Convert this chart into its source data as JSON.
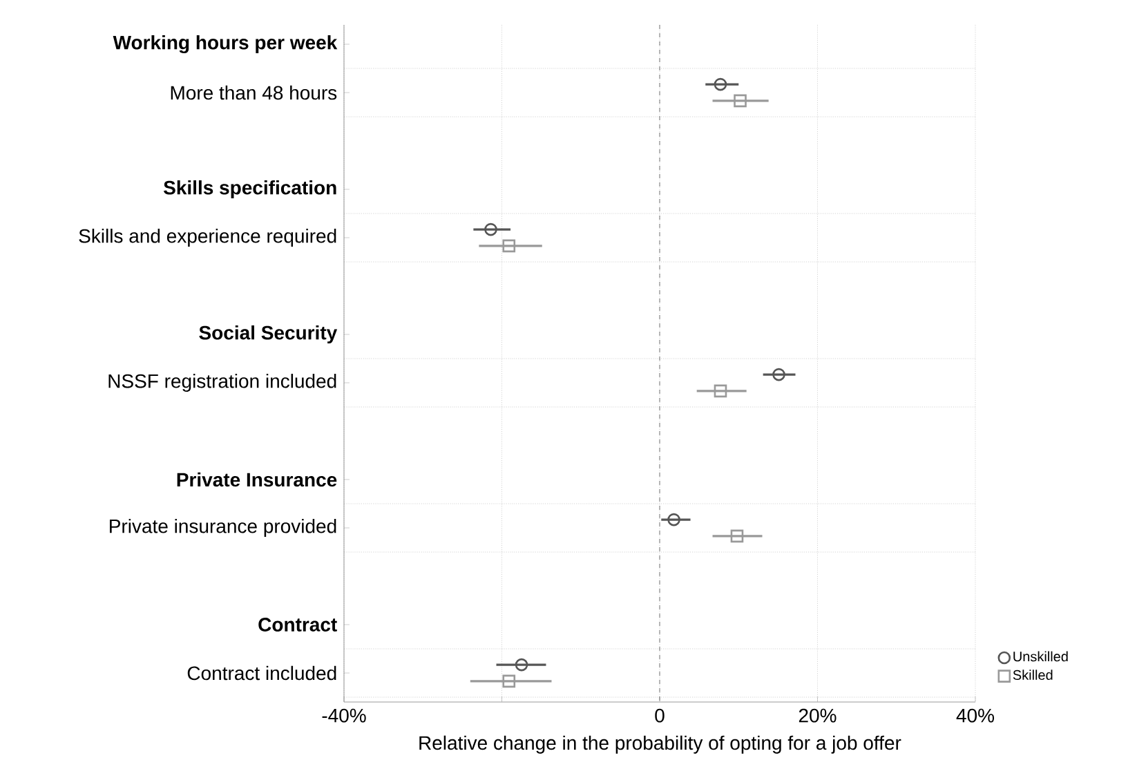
{
  "chart_data": {
    "type": "scatter",
    "orientation": "horizontal",
    "categories": [
      "Working hours per week",
      "More than 48 hours",
      "Skills specification",
      "Skills and experience required",
      "Social Security",
      "NSSF registration included",
      "Private Insurance",
      "Private insurance provided",
      "Contract",
      "Contract included"
    ],
    "series": [
      {
        "name": "Unskilled",
        "color": "#555555",
        "marker": "circle",
        "values": [
          null,
          7.7,
          null,
          -21.4,
          null,
          15.1,
          null,
          1.8,
          null,
          -17.5
        ],
        "errors": [
          null,
          [
            5.8,
            10.0
          ],
          null,
          [
            -23.6,
            -18.9
          ],
          null,
          [
            13.1,
            17.2
          ],
          null,
          [
            0.2,
            3.9
          ],
          null,
          [
            -20.7,
            -14.4
          ]
        ]
      },
      {
        "name": "Skilled",
        "color": "#999999",
        "marker": "square",
        "values": [
          null,
          10.2,
          null,
          -19.1,
          null,
          7.7,
          null,
          9.8,
          null,
          -19.1
        ],
        "errors": [
          null,
          [
            6.7,
            13.8
          ],
          null,
          [
            -22.9,
            -14.9
          ],
          null,
          [
            4.7,
            11.0
          ],
          null,
          [
            6.7,
            13.0
          ],
          null,
          [
            -24.0,
            -13.7
          ]
        ]
      }
    ],
    "xlim": [
      -40,
      40
    ],
    "xticks": [
      {
        "value": -40,
        "label": "-40%"
      },
      {
        "value": -20,
        "label": null
      },
      0,
      {
        "value": 20,
        "label": "20%"
      },
      {
        "value": 40,
        "label": "40%"
      }
    ],
    "xlabel": "Relative change in the probability of opting for a job offer",
    "ref_lines": [
      {
        "axis": "x",
        "value": 0,
        "line_style": "dashed",
        "color": "#555555"
      }
    ],
    "grid": true,
    "legend": "bottom right"
  }
}
